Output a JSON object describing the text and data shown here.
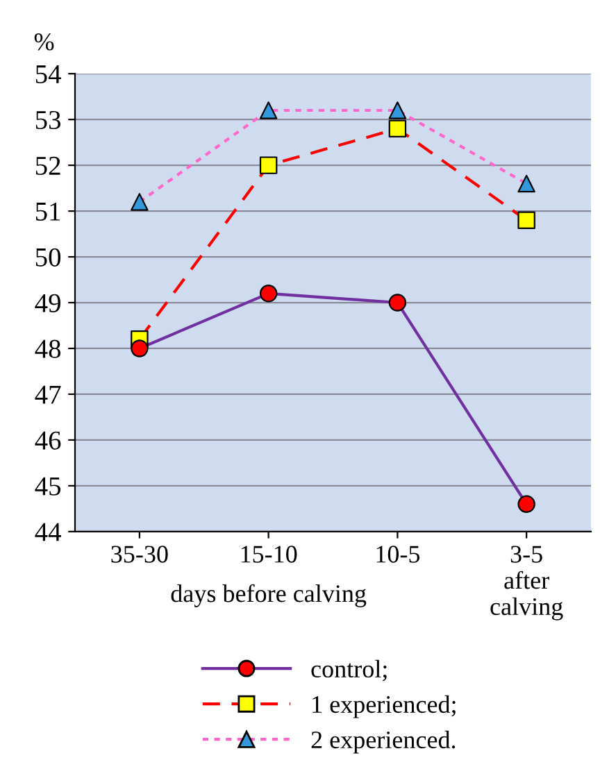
{
  "chart_data": {
    "type": "line",
    "ylabel": "%",
    "xlabel": "days before calving",
    "categories": [
      "35-30",
      "15-10",
      "10-5",
      "3-5\nafter\ncalving"
    ],
    "series": [
      {
        "name": "control;",
        "color": "#7030a0",
        "colors": [
          "#ff0000",
          "#ff0000",
          "#ff0000",
          "#ff0000"
        ],
        "marker": "circle",
        "line_style": "solid",
        "values": [
          48.0,
          49.2,
          49.0,
          44.6
        ]
      },
      {
        "name": "1 experienced;",
        "color": "#ff0000",
        "colors": [
          "#ffff00",
          "#ffff00",
          "#ffff00",
          "#ffff00"
        ],
        "marker": "square",
        "line_style": "dashed",
        "values": [
          48.2,
          52.0,
          52.8,
          50.8
        ]
      },
      {
        "name": "2 experienced.",
        "color": "#ff66cc",
        "colors": [
          "#3399dd",
          "#3399dd",
          "#3399dd",
          "#3399dd"
        ],
        "marker": "triangle",
        "line_style": "dotted",
        "values": [
          51.2,
          53.2,
          53.2,
          51.6
        ]
      }
    ],
    "ylim": [
      44,
      54
    ],
    "yticks": [
      44,
      45,
      46,
      47,
      48,
      49,
      50,
      51,
      52,
      53,
      54
    ],
    "grid": "y",
    "legend": "bottom"
  }
}
